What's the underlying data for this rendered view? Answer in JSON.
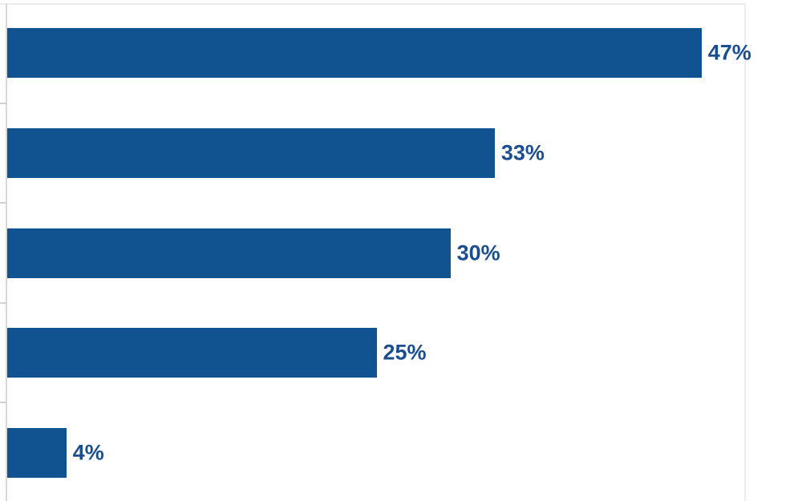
{
  "chart_data": {
    "type": "bar",
    "orientation": "horizontal",
    "title": "",
    "categories": [
      "",
      "",
      "",
      "",
      ""
    ],
    "values": [
      47,
      33,
      30,
      25,
      4
    ],
    "data_labels": [
      "47%",
      "33%",
      "30%",
      "25%",
      "4%"
    ],
    "xlim": [
      0,
      50
    ],
    "x_gridlines_pct": [
      0,
      50
    ],
    "grid": "vertical-only",
    "legend": "none",
    "axis_ticks": "left-category-boundaries",
    "colors": {
      "bar": "#115390",
      "data_label": "#1b4e91",
      "axis_line": "#d7d7d7",
      "tick": "#cfcfcf",
      "gridline": "#ededed",
      "top_border": "#ececec",
      "background": "#ffffff"
    }
  }
}
